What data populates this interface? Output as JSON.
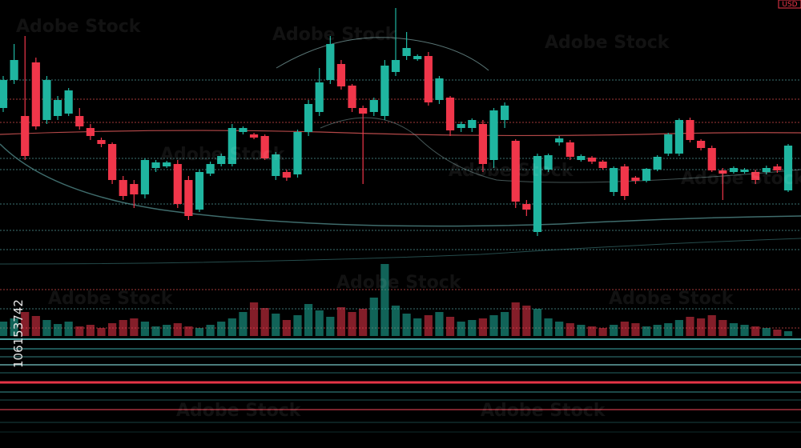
{
  "chart_data": {
    "type": "candlestick",
    "up_color": "#1fb5a0",
    "down_color": "#f0364a",
    "ylim": [
      0,
      300
    ],
    "volume_lim": [
      0,
      100
    ],
    "badge": "USD",
    "watermark": "Adobe Stock",
    "stock_id": "106153742",
    "open": [
      165,
      200,
      155,
      222,
      150,
      155,
      158,
      155,
      140,
      125,
      120,
      75,
      70,
      57,
      90,
      92,
      95,
      75,
      38,
      83,
      95,
      95,
      135,
      132,
      130,
      80,
      85,
      82,
      135,
      160,
      200,
      220,
      193,
      165,
      160,
      155,
      210,
      230,
      226,
      230,
      175,
      178,
      140,
      140,
      145,
      100,
      150,
      124,
      45,
      10,
      88,
      122,
      122,
      100,
      103,
      98,
      60,
      92,
      78,
      74,
      88,
      108,
      108,
      150,
      124,
      115,
      87,
      85,
      85,
      85,
      85,
      92,
      62
    ],
    "high": [
      205,
      245,
      255,
      228,
      205,
      180,
      190,
      165,
      145,
      128,
      122,
      80,
      75,
      102,
      100,
      99,
      100,
      80,
      88,
      98,
      108,
      145,
      142,
      134,
      132,
      110,
      88,
      138,
      175,
      215,
      255,
      225,
      195,
      168,
      178,
      225,
      290,
      260,
      232,
      235,
      205,
      180,
      148,
      152,
      150,
      165,
      172,
      126,
      50,
      108,
      108,
      130,
      125,
      107,
      105,
      100,
      92,
      95,
      80,
      90,
      106,
      134,
      152,
      153,
      126,
      118,
      90,
      92,
      90,
      88,
      93,
      95,
      120
    ],
    "low": [
      160,
      195,
      100,
      138,
      145,
      150,
      155,
      138,
      125,
      116,
      70,
      50,
      40,
      52,
      85,
      90,
      40,
      25,
      35,
      80,
      92,
      92,
      132,
      126,
      100,
      75,
      74,
      78,
      130,
      155,
      195,
      188,
      160,
      70,
      155,
      150,
      205,
      225,
      224,
      168,
      170,
      130,
      135,
      135,
      85,
      90,
      140,
      40,
      30,
      5,
      85,
      118,
      100,
      98,
      95,
      88,
      55,
      50,
      70,
      72,
      86,
      105,
      105,
      122,
      112,
      85,
      50,
      83,
      83,
      70,
      82,
      84,
      60
    ],
    "close": [
      200,
      225,
      105,
      142,
      200,
      175,
      187,
      142,
      130,
      120,
      75,
      55,
      57,
      100,
      97,
      97,
      45,
      30,
      85,
      95,
      105,
      140,
      140,
      128,
      102,
      107,
      78,
      135,
      170,
      197,
      245,
      192,
      165,
      158,
      175,
      218,
      225,
      240,
      230,
      172,
      202,
      137,
      145,
      150,
      95,
      162,
      168,
      48,
      38,
      105,
      106,
      127,
      104,
      105,
      98,
      90,
      90,
      55,
      74,
      89,
      104,
      132,
      150,
      125,
      115,
      87,
      83,
      90,
      88,
      75,
      90,
      87,
      118
    ],
    "volume": [
      18,
      22,
      30,
      25,
      20,
      15,
      18,
      12,
      14,
      10,
      16,
      20,
      22,
      18,
      12,
      14,
      16,
      12,
      10,
      14,
      18,
      22,
      30,
      42,
      35,
      28,
      20,
      26,
      40,
      32,
      24,
      36,
      30,
      34,
      48,
      90,
      38,
      28,
      22,
      26,
      30,
      24,
      18,
      20,
      22,
      26,
      30,
      42,
      38,
      34,
      22,
      18,
      16,
      14,
      12,
      10,
      14,
      18,
      16,
      12,
      14,
      16,
      20,
      24,
      22,
      26,
      20,
      16,
      14,
      12,
      10,
      8,
      6
    ]
  }
}
